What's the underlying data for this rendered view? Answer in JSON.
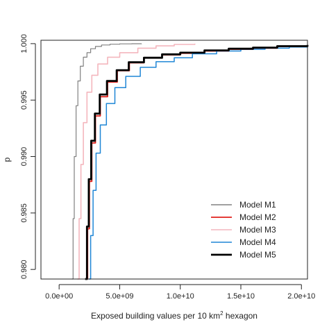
{
  "chart_data": {
    "type": "line",
    "title": "",
    "xlabel_main": "Exposed building values per 10 km",
    "xlabel_sup": "2",
    "xlabel_tail": " hexagon",
    "ylabel": "p",
    "xlim": [
      -1500000000.0,
      20500000000.0
    ],
    "ylim": [
      0.97915,
      1.0003
    ],
    "x_ticks": [
      0,
      5000000000,
      10000000000,
      15000000000,
      20000000000
    ],
    "x_tick_labels": [
      "0.0e+00",
      "5.0e+09",
      "1.0e+10",
      "1.5e+10",
      "2.0e+10"
    ],
    "y_ticks": [
      0.98,
      0.985,
      0.99,
      0.995,
      1.0
    ],
    "y_tick_labels": [
      "0.980",
      "0.985",
      "0.990",
      "0.995",
      "1.000"
    ],
    "legend_position": "bottom-right",
    "series": [
      {
        "name": "Model M1",
        "color": "#808080",
        "width": 1.2,
        "x": [
          1050000000.0,
          1150000000.0,
          1250000000.0,
          1400000000.0,
          1550000000.0,
          1750000000.0,
          2000000000.0,
          2300000000.0,
          2600000000.0,
          3000000000.0,
          3500000000.0,
          4200000000.0,
          5000000000.0,
          6000000000.0,
          6800000000.0
        ],
        "y": [
          0.97915,
          0.9845,
          0.99,
          0.9945,
          0.9967,
          0.998,
          0.9988,
          0.9992,
          0.99955,
          0.99975,
          0.99988,
          0.99995,
          0.99998,
          0.99999,
          1.0
        ]
      },
      {
        "name": "Model M2",
        "color": "#e0201b",
        "width": 1.8,
        "x": [
          2200000000.0,
          2350000000.0,
          2500000000.0,
          2700000000.0,
          3000000000.0,
          3400000000.0,
          4000000000.0,
          4800000000.0,
          5800000000.0,
          7000000000.0,
          8500000000.0,
          10000000000.0,
          12000000000.0,
          14000000000.0,
          16000000000.0,
          18000000000.0,
          20500000000.0
        ],
        "y": [
          0.97915,
          0.9836,
          0.9878,
          0.9912,
          0.9936,
          0.9953,
          0.9966,
          0.9976,
          0.9983,
          0.99875,
          0.999,
          0.99915,
          0.99935,
          0.9995,
          0.9996,
          0.99975,
          0.99985
        ]
      },
      {
        "name": "Model M3",
        "color": "#f4b6bd",
        "width": 1.6,
        "x": [
          1500000000.0,
          1650000000.0,
          1800000000.0,
          2000000000.0,
          2300000000.0,
          2700000000.0,
          3200000000.0,
          4000000000.0,
          5000000000.0,
          6500000000.0,
          8000000000.0,
          9500000000.0,
          11200000000.0
        ],
        "y": [
          0.97915,
          0.9845,
          0.9893,
          0.993,
          0.9957,
          0.9972,
          0.9982,
          0.9988,
          0.9992,
          0.9996,
          0.9998,
          0.99993,
          1.0
        ]
      },
      {
        "name": "Model M4",
        "color": "#1f86d6",
        "width": 1.5,
        "x": [
          2450000000.0,
          2600000000.0,
          2800000000.0,
          3050000000.0,
          3400000000.0,
          3900000000.0,
          4600000000.0,
          5500000000.0,
          6700000000.0,
          8000000000.0,
          9500000000.0,
          11000000000.0,
          13000000000.0,
          15000000000.0,
          17000000000.0,
          19000000000.0,
          20500000000.0
        ],
        "y": [
          0.97915,
          0.983,
          0.987,
          0.9903,
          0.9928,
          0.9947,
          0.9961,
          0.9971,
          0.9979,
          0.9984,
          0.99875,
          0.9991,
          0.99935,
          0.9995,
          0.9996,
          0.9997,
          0.9998
        ]
      },
      {
        "name": "Model M5",
        "color": "#000000",
        "width": 2.8,
        "x": [
          2150000000.0,
          2300000000.0,
          2450000000.0,
          2650000000.0,
          2950000000.0,
          3350000000.0,
          3950000000.0,
          4750000000.0,
          5750000000.0,
          7000000000.0,
          8500000000.0,
          10000000000.0,
          12000000000.0,
          14000000000.0,
          16000000000.0,
          18000000000.0,
          20500000000.0
        ],
        "y": [
          0.97915,
          0.9838,
          0.988,
          0.9914,
          0.9938,
          0.9955,
          0.9967,
          0.99765,
          0.99835,
          0.99875,
          0.99905,
          0.9992,
          0.9994,
          0.99955,
          0.99965,
          0.99978,
          0.99988
        ]
      }
    ]
  }
}
